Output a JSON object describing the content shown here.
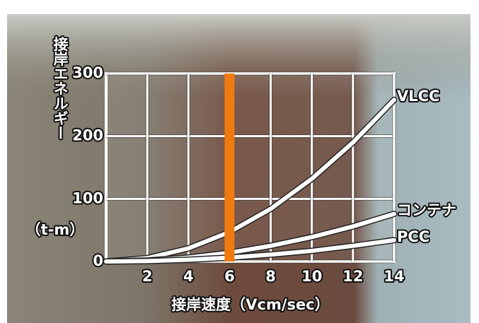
{
  "chart_data": {
    "type": "line",
    "x_label": "接岸速度（Vcm/sec）",
    "y_label": "接岸エネルギー",
    "y_unit": "（t-m）",
    "x": [
      0,
      2,
      4,
      6,
      8,
      10,
      12,
      14
    ],
    "series": [
      {
        "name": "VLCC",
        "color": "#ffffff",
        "values": [
          0,
          5.3,
          21,
          47,
          84,
          132,
          190,
          258
        ]
      },
      {
        "name": "コンテナ",
        "color": "#ffffff",
        "values": [
          0,
          1.6,
          6.2,
          14,
          25,
          39,
          56,
          76
        ]
      },
      {
        "name": "PCC",
        "color": "#ffffff",
        "values": [
          0,
          0.7,
          2.8,
          6.2,
          11,
          17,
          25,
          34
        ]
      }
    ],
    "marker_x": 6,
    "marker_color": "#f07a10",
    "xlim": [
      0,
      14
    ],
    "xticks": [
      2,
      4,
      6,
      8,
      10,
      12,
      14
    ],
    "ylim": [
      0,
      300
    ],
    "yticks": [
      0,
      100,
      200,
      300
    ],
    "grid": true
  }
}
